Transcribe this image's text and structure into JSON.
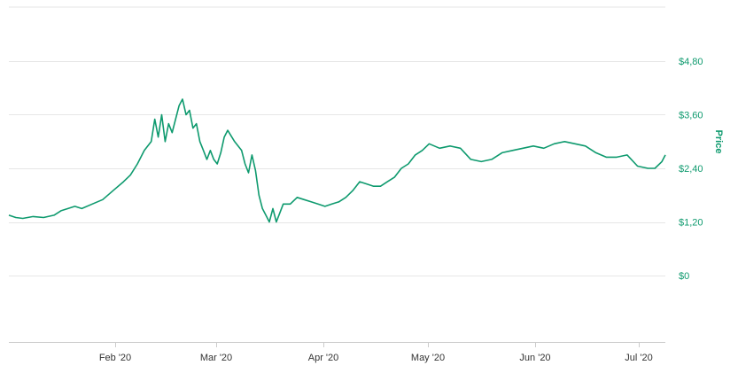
{
  "chart_data": {
    "type": "line",
    "title": "",
    "xlabel": "",
    "ylabel": "Price",
    "x_tick_labels": [
      "Feb '20",
      "Mar '20",
      "Apr '20",
      "May '20",
      "Jun '20",
      "Jul '20"
    ],
    "y_tick_labels": [
      "$0",
      "$1,20",
      "$2,40",
      "$3,60",
      "$4,80"
    ],
    "y_ticks": [
      0,
      1.2,
      2.4,
      3.6,
      4.8
    ],
    "ylim": [
      -1.5,
      6
    ],
    "xlim": [
      "2020-01-01",
      "2020-07-08"
    ],
    "grid": true,
    "legend": "none",
    "colors": {
      "line": "#0e9a6e",
      "axis_label": "#0e9a6e",
      "grid": "#e6e6e6",
      "tick_x": "#333333"
    },
    "series": [
      {
        "x": [
          "2020-01-01",
          "2020-01-03",
          "2020-01-05",
          "2020-01-08",
          "2020-01-11",
          "2020-01-14",
          "2020-01-16",
          "2020-01-18",
          "2020-01-20",
          "2020-01-22",
          "2020-01-25",
          "2020-01-28",
          "2020-01-31",
          "2020-02-03",
          "2020-02-05",
          "2020-02-07",
          "2020-02-09",
          "2020-02-11",
          "2020-02-12",
          "2020-02-13",
          "2020-02-14",
          "2020-02-15",
          "2020-02-16",
          "2020-02-17",
          "2020-02-18",
          "2020-02-19",
          "2020-02-20",
          "2020-02-21",
          "2020-02-22",
          "2020-02-23",
          "2020-02-24",
          "2020-02-25",
          "2020-02-26",
          "2020-02-27",
          "2020-02-28",
          "2020-02-29",
          "2020-03-01",
          "2020-03-02",
          "2020-03-03",
          "2020-03-04",
          "2020-03-06",
          "2020-03-08",
          "2020-03-09",
          "2020-03-10",
          "2020-03-11",
          "2020-03-12",
          "2020-03-13",
          "2020-03-14",
          "2020-03-15",
          "2020-03-16",
          "2020-03-17",
          "2020-03-18",
          "2020-03-19",
          "2020-03-20",
          "2020-03-22",
          "2020-03-24",
          "2020-03-26",
          "2020-03-28",
          "2020-03-30",
          "2020-04-01",
          "2020-04-03",
          "2020-04-05",
          "2020-04-07",
          "2020-04-09",
          "2020-04-11",
          "2020-04-13",
          "2020-04-15",
          "2020-04-17",
          "2020-04-19",
          "2020-04-21",
          "2020-04-23",
          "2020-04-25",
          "2020-04-27",
          "2020-04-29",
          "2020-05-01",
          "2020-05-04",
          "2020-05-07",
          "2020-05-10",
          "2020-05-13",
          "2020-05-16",
          "2020-05-19",
          "2020-05-22",
          "2020-05-25",
          "2020-05-28",
          "2020-05-31",
          "2020-06-03",
          "2020-06-06",
          "2020-06-09",
          "2020-06-12",
          "2020-06-15",
          "2020-06-18",
          "2020-06-21",
          "2020-06-24",
          "2020-06-27",
          "2020-06-30",
          "2020-07-03",
          "2020-07-05",
          "2020-07-07",
          "2020-07-08"
        ],
        "values": [
          1.35,
          1.3,
          1.28,
          1.32,
          1.3,
          1.35,
          1.45,
          1.5,
          1.55,
          1.5,
          1.6,
          1.7,
          1.9,
          2.1,
          2.25,
          2.5,
          2.8,
          3.0,
          3.5,
          3.1,
          3.6,
          3.0,
          3.4,
          3.2,
          3.5,
          3.8,
          3.95,
          3.6,
          3.7,
          3.3,
          3.4,
          3.0,
          2.8,
          2.6,
          2.8,
          2.6,
          2.5,
          2.75,
          3.1,
          3.25,
          3.0,
          2.8,
          2.5,
          2.3,
          2.7,
          2.35,
          1.8,
          1.5,
          1.35,
          1.2,
          1.5,
          1.2,
          1.4,
          1.6,
          1.6,
          1.75,
          1.7,
          1.65,
          1.6,
          1.55,
          1.6,
          1.65,
          1.75,
          1.9,
          2.1,
          2.05,
          2.0,
          2.0,
          2.1,
          2.2,
          2.4,
          2.5,
          2.7,
          2.8,
          2.95,
          2.85,
          2.9,
          2.85,
          2.6,
          2.55,
          2.6,
          2.75,
          2.8,
          2.85,
          2.9,
          2.85,
          2.95,
          3.0,
          2.95,
          2.9,
          2.75,
          2.65,
          2.65,
          2.7,
          2.45,
          2.4,
          2.4,
          2.55,
          2.7
        ]
      }
    ]
  }
}
